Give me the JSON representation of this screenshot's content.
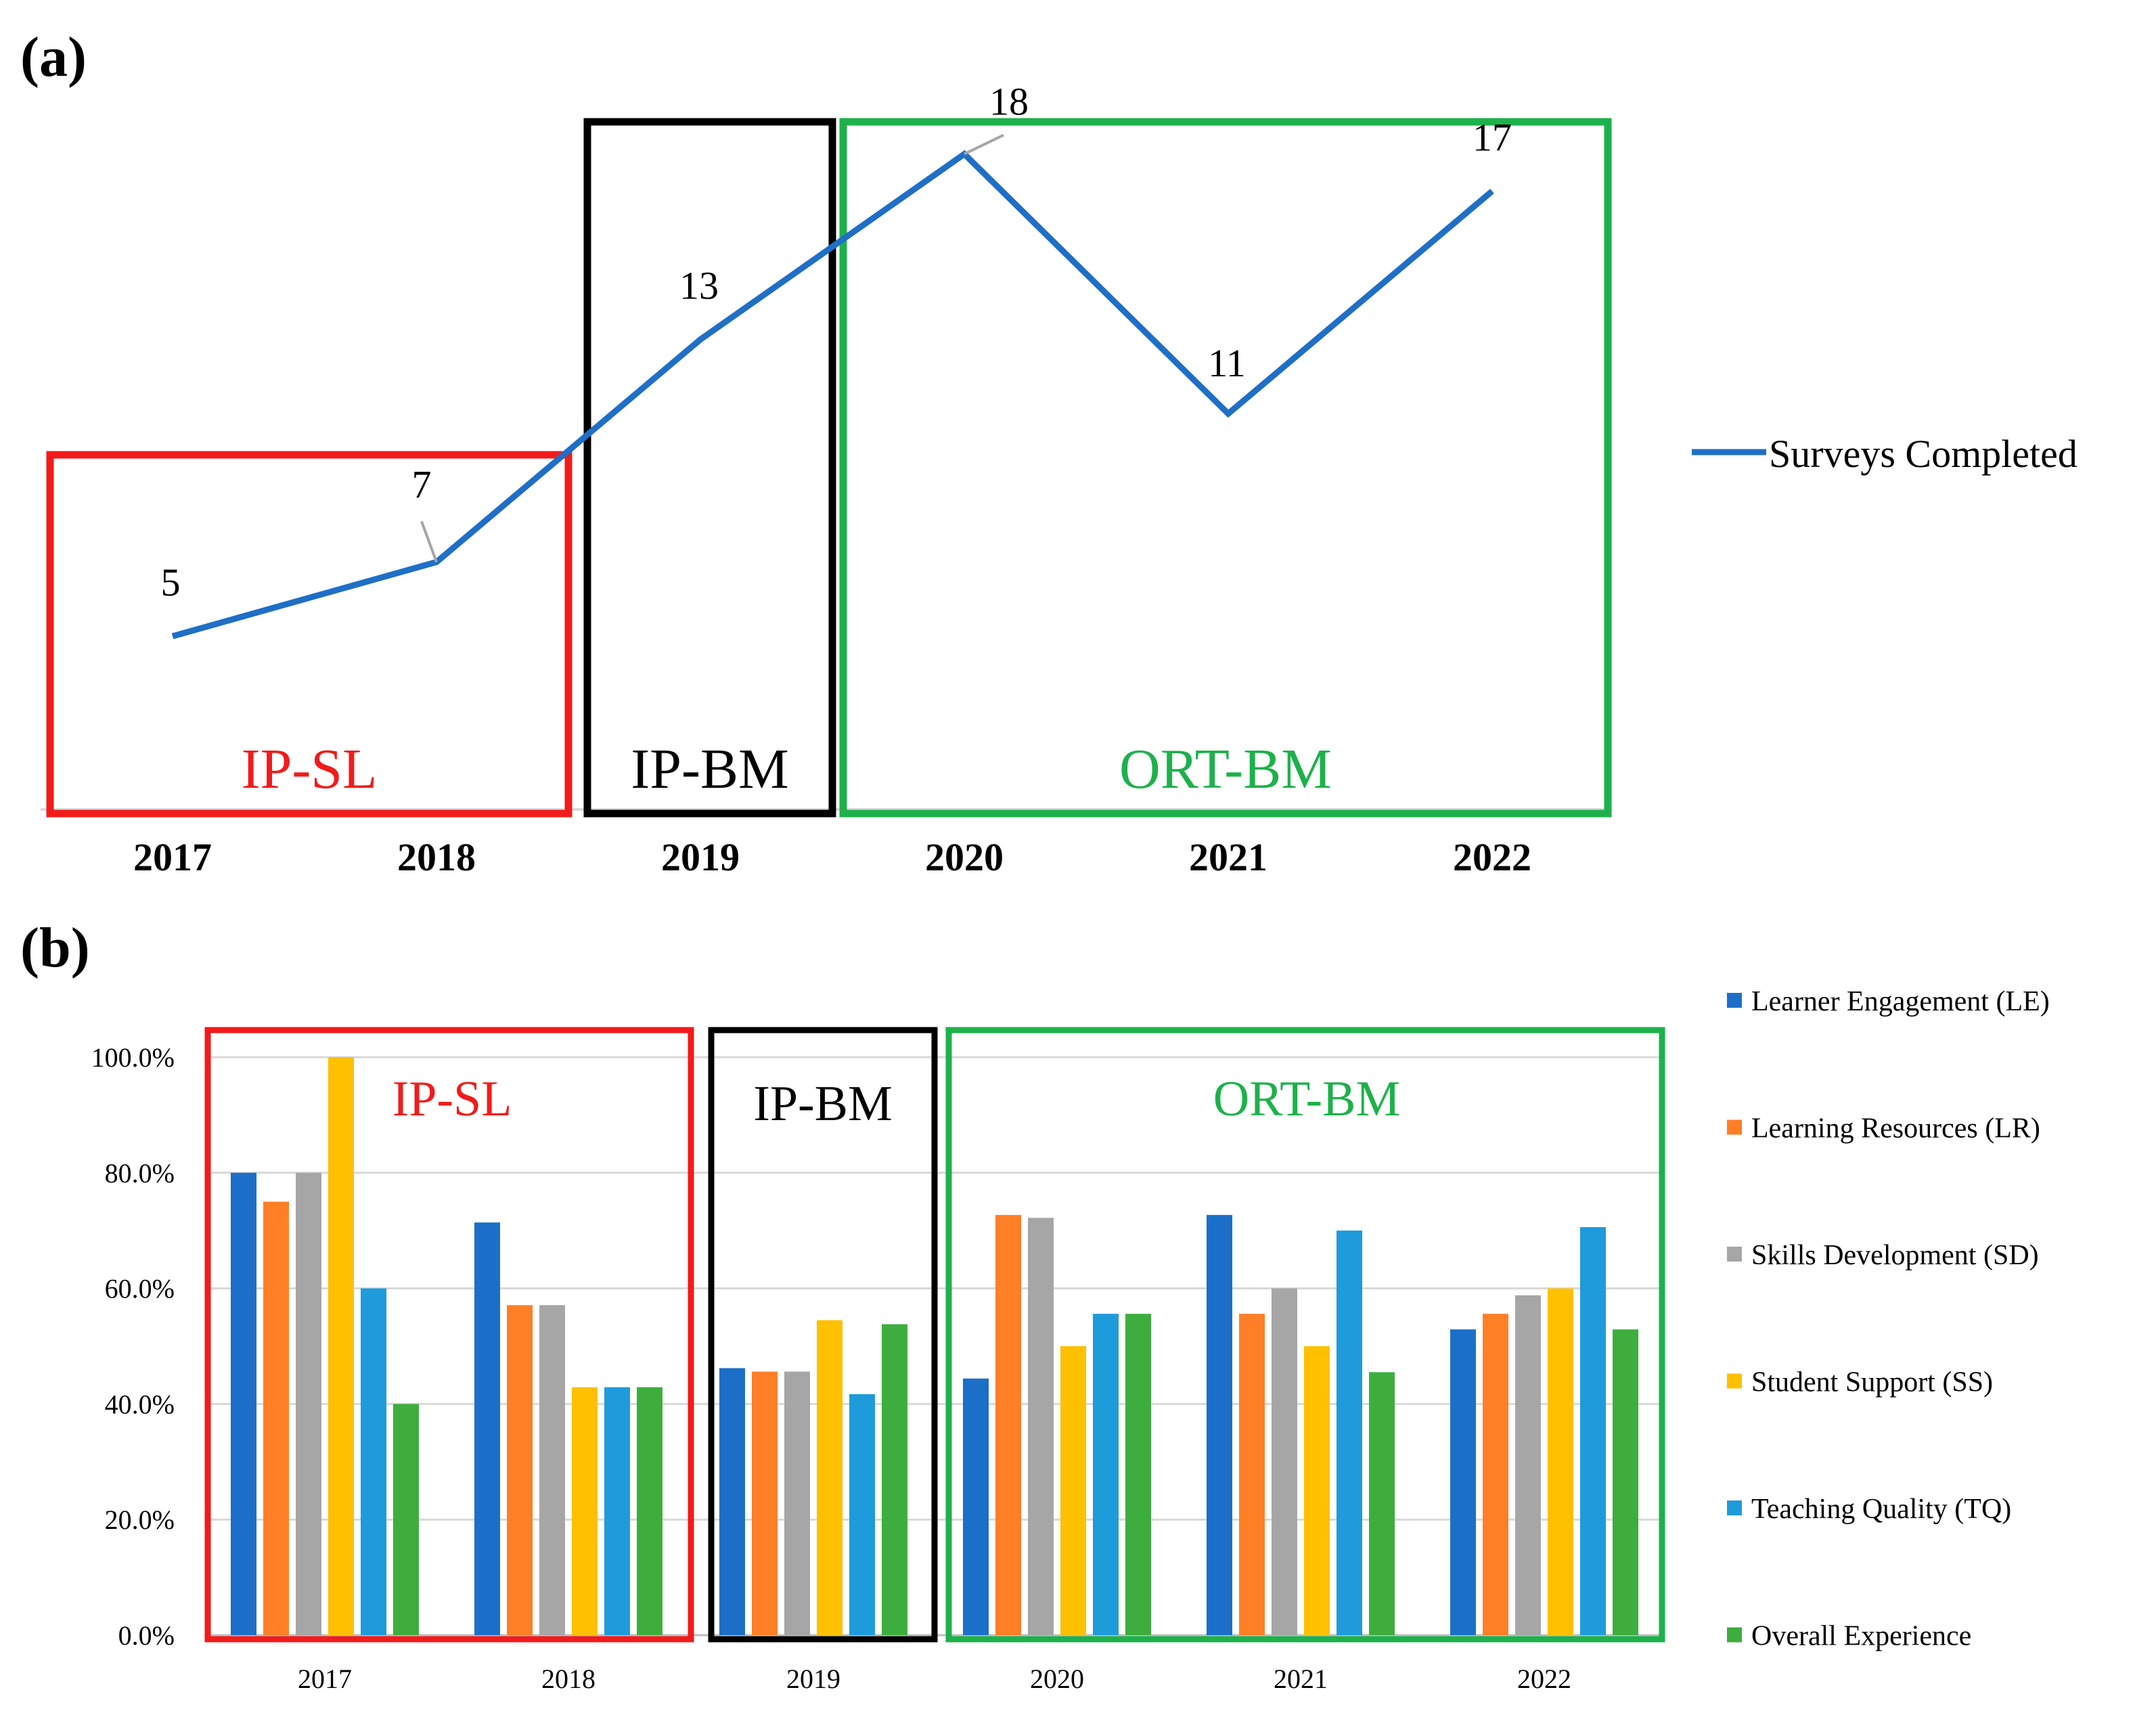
{
  "figure": {
    "panel_a_label": "(a)",
    "panel_b_label": "(b)"
  },
  "colors": {
    "line": "#1F6FC6",
    "leader": "#A6A6A6",
    "grid": "#D9D9D9",
    "ip_sl": "#F21B1B",
    "ip_bm": "#000000",
    "ort_bm": "#1DB14B",
    "series": [
      "#1B6FC8",
      "#FF7F27",
      "#A6A6A6",
      "#FFC000",
      "#1E9BDB",
      "#3DAE3D"
    ]
  },
  "chart_data": [
    {
      "type": "line",
      "panel": "(a)",
      "x": [
        "2017",
        "2018",
        "2019",
        "2020",
        "2021",
        "2022"
      ],
      "series": [
        {
          "name": "Surveys Completed",
          "values": [
            5,
            7,
            13,
            18,
            11,
            17
          ]
        }
      ],
      "data_labels": [
        "5",
        "7",
        "13",
        "18",
        "11",
        "17"
      ],
      "groups": [
        {
          "label": "IP-SL",
          "years": [
            "2017",
            "2018"
          ],
          "color": "#F21B1B"
        },
        {
          "label": "IP-BM",
          "years": [
            "2019"
          ],
          "color": "#000000"
        },
        {
          "label": "ORT-BM",
          "years": [
            "2020",
            "2021",
            "2022"
          ],
          "color": "#1DB14B"
        }
      ],
      "ylim": [
        0,
        24
      ],
      "legend_position": "right"
    },
    {
      "type": "bar",
      "panel": "(b)",
      "categories": [
        "2017",
        "2018",
        "2019",
        "2020",
        "2021",
        "2022"
      ],
      "series": [
        {
          "name": "Learner Engagement (LE)",
          "values": [
            80.0,
            71.4,
            46.2,
            44.4,
            72.7,
            52.9
          ]
        },
        {
          "name": "Learning Resources (LR)",
          "values": [
            75.0,
            57.1,
            45.6,
            72.7,
            55.6,
            55.6
          ]
        },
        {
          "name": "Skills Development (SD)",
          "values": [
            80.0,
            57.1,
            45.6,
            72.2,
            60.0,
            58.8
          ]
        },
        {
          "name": "Student Support (SS)",
          "values": [
            100.0,
            42.9,
            54.5,
            50.0,
            50.0,
            60.0
          ]
        },
        {
          "name": "Teaching Quality (TQ)",
          "values": [
            60.0,
            42.9,
            41.7,
            55.6,
            70.0,
            70.6
          ]
        },
        {
          "name": "Overall Experience",
          "values": [
            40.0,
            42.9,
            53.8,
            55.6,
            45.5,
            52.9
          ]
        }
      ],
      "y_ticks": [
        "0.0%",
        "20.0%",
        "40.0%",
        "60.0%",
        "80.0%",
        "100.0%"
      ],
      "ylim": [
        0,
        100
      ],
      "grid": true,
      "groups": [
        {
          "label": "IP-SL",
          "years": [
            "2017",
            "2018"
          ],
          "color": "#F21B1B"
        },
        {
          "label": "IP-BM",
          "years": [
            "2019"
          ],
          "color": "#000000"
        },
        {
          "label": "ORT-BM",
          "years": [
            "2020",
            "2021",
            "2022"
          ],
          "color": "#1DB14B"
        }
      ],
      "legend_position": "right"
    }
  ]
}
